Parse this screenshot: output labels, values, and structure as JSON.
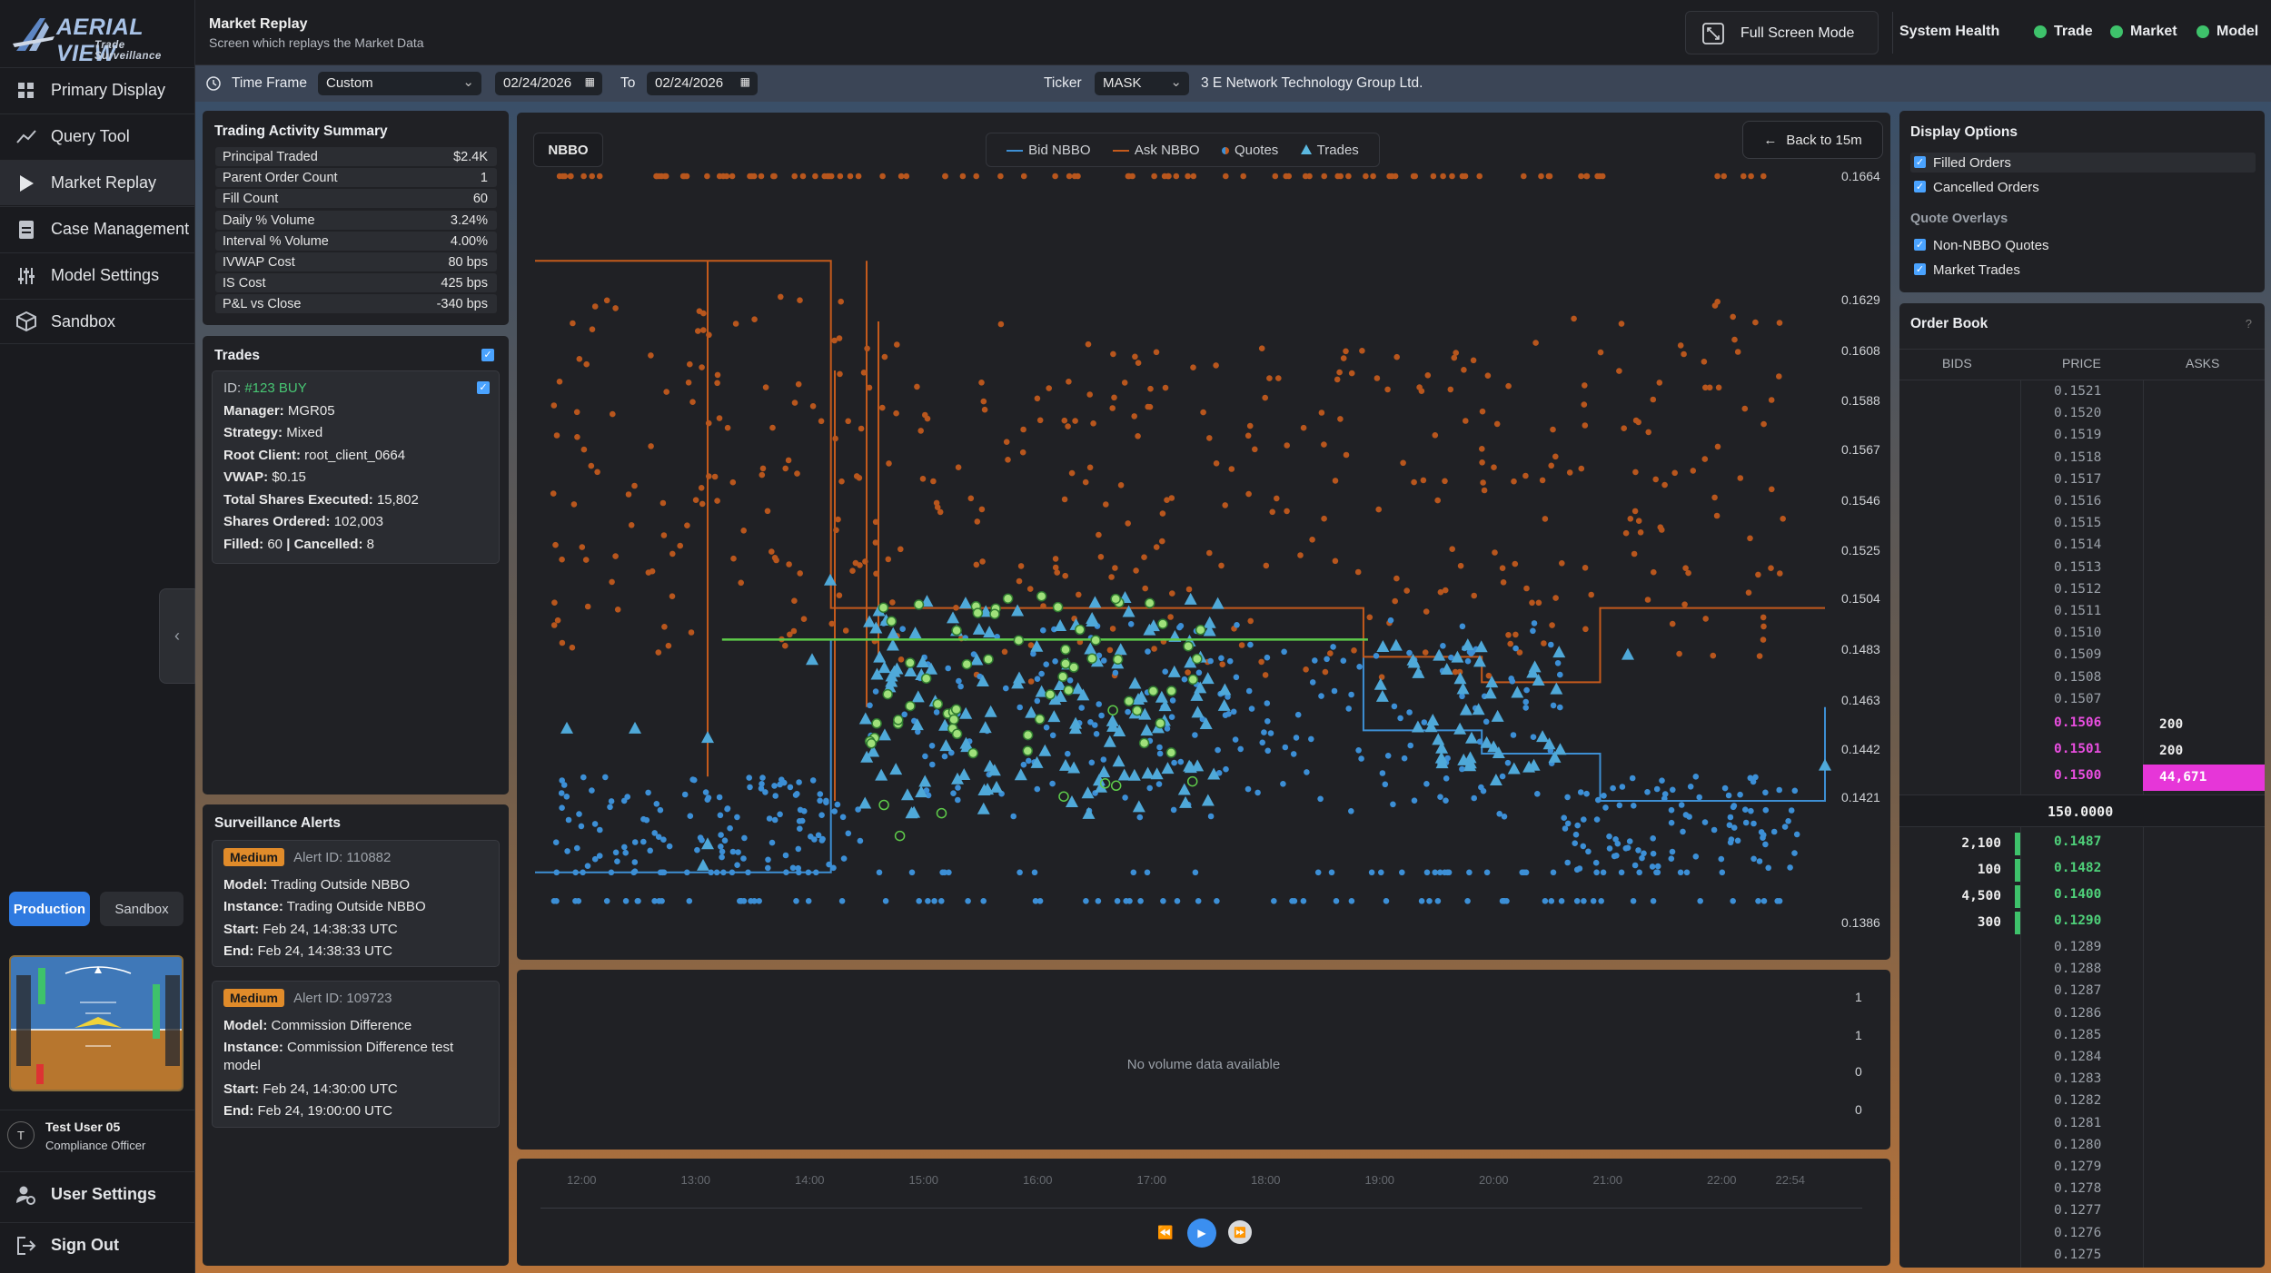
{
  "app": {
    "logo_line1": "AERIAL VIEW",
    "logo_line2": "Trade Surveillance",
    "page_title": "Market Replay",
    "page_subtitle": "Screen which replays the Market Data",
    "fullscreen_label": "Full Screen Mode",
    "system_health_label": "System Health",
    "health": [
      {
        "label": "Trade",
        "color": "#3ec26b"
      },
      {
        "label": "Market",
        "color": "#3ec26b"
      },
      {
        "label": "Model",
        "color": "#3ec26b"
      }
    ]
  },
  "sidebar": {
    "items": [
      {
        "label": "Primary Display",
        "icon": "grid-icon"
      },
      {
        "label": "Query Tool",
        "icon": "trend-icon"
      },
      {
        "label": "Market Replay",
        "icon": "play-icon",
        "active": true
      },
      {
        "label": "Case Management",
        "icon": "document-icon"
      },
      {
        "label": "Model Settings",
        "icon": "sliders-icon"
      },
      {
        "label": "Sandbox",
        "icon": "cube-icon"
      }
    ],
    "env_production": "Production",
    "env_sandbox": "Sandbox",
    "user_initial": "T",
    "user_name": "Test User 05",
    "user_role": "Compliance Officer",
    "user_settings": "User Settings",
    "sign_out": "Sign Out"
  },
  "filters": {
    "timeframe_label": "Time Frame",
    "timeframe_value": "Custom",
    "date_from": "02/24/2026",
    "to_label": "To",
    "date_to": "02/24/2026",
    "ticker_label": "Ticker",
    "ticker_value": "MASK",
    "company_name": "3 E Network Technology Group Ltd."
  },
  "summary": {
    "title": "Trading Activity Summary",
    "rows": [
      {
        "k": "Principal Traded",
        "v": "$2.4K"
      },
      {
        "k": "Parent Order Count",
        "v": "1"
      },
      {
        "k": "Fill Count",
        "v": "60"
      },
      {
        "k": "Daily % Volume",
        "v": "3.24%"
      },
      {
        "k": "Interval % Volume",
        "v": "4.00%"
      },
      {
        "k": "IVWAP Cost",
        "v": "80 bps"
      },
      {
        "k": "IS Cost",
        "v": "425 bps"
      },
      {
        "k": "P&L vs Close",
        "v": "-340 bps"
      }
    ]
  },
  "trades": {
    "title": "Trades",
    "id_label": "ID:",
    "id_value": "#123 BUY",
    "manager_label": "Manager:",
    "manager": "MGR05",
    "strategy_label": "Strategy:",
    "strategy": "Mixed",
    "root_label": "Root Client:",
    "root_client": "root_client_0664",
    "vwap_label": "VWAP:",
    "vwap": "$0.15",
    "tse_label": "Total Shares Executed:",
    "tse": "15,802",
    "so_label": "Shares Ordered:",
    "so": "102,003",
    "filled_label": "Filled:",
    "filled": "60",
    "cancelled_label": "Cancelled:",
    "cancelled": "8"
  },
  "alerts": {
    "title": "Surveillance Alerts",
    "items": [
      {
        "severity": "Medium",
        "alert_id_label": "Alert ID:",
        "alert_id": "110882",
        "model_label": "Model:",
        "model": "Trading Outside NBBO",
        "instance_label": "Instance:",
        "instance": "Trading Outside NBBO",
        "start_label": "Start:",
        "start": "Feb 24, 14:38:33 UTC",
        "end_label": "End:",
        "end": "Feb 24, 14:38:33 UTC"
      },
      {
        "severity": "Medium",
        "alert_id_label": "Alert ID:",
        "alert_id": "109723",
        "model_label": "Model:",
        "model": "Commission Difference",
        "instance_label": "Instance:",
        "instance_line1": "Commission Difference test",
        "instance_line2": "model",
        "start_label": "Start:",
        "start": "Feb 24, 14:30:00 UTC",
        "end_label": "End:",
        "end": "Feb 24, 19:00:00 UTC"
      }
    ]
  },
  "chart": {
    "nbbo_button": "NBBO",
    "back_button": "Back to 15m",
    "legend": [
      {
        "label": "Bid NBBO",
        "color": "#3d8fd4"
      },
      {
        "label": "Ask NBBO",
        "color": "#c45a1c"
      },
      {
        "label": "Quotes",
        "color": "#c45a1c"
      },
      {
        "label": "Trades",
        "color": "#5bb8e0"
      }
    ],
    "no_volume_text": "No volume data available",
    "volume_ticks": [
      "1",
      "1",
      "0",
      "0"
    ],
    "timeline_ticks": [
      "12:00",
      "13:00",
      "14:00",
      "15:00",
      "16:00",
      "17:00",
      "18:00",
      "19:00",
      "20:00",
      "21:00",
      "22:00",
      "22:54"
    ]
  },
  "chart_data": {
    "type": "scatter",
    "title": "",
    "xlabel": "",
    "ylabel": "",
    "y_ticks": [
      0.1664,
      0.1629,
      0.1608,
      0.1588,
      0.1567,
      0.1546,
      0.1525,
      0.1504,
      0.1483,
      0.1463,
      0.1442,
      0.1421,
      0.1386
    ],
    "x_ticks": [
      "12:00",
      "13:00",
      "14:00",
      "15:00",
      "16:00",
      "17:00",
      "18:00",
      "19:00",
      "20:00",
      "21:00",
      "22:00",
      "22:54"
    ],
    "series": [
      {
        "name": "Bid NBBO",
        "x": [
          "12:00",
          "14:05",
          "14:30",
          "14:30",
          "15:00",
          "19:00",
          "20:00",
          "21:00",
          "22:54"
        ],
        "values": [
          0.14,
          0.14,
          0.14,
          0.1487,
          0.1487,
          0.145,
          0.144,
          0.142,
          0.146
        ]
      },
      {
        "name": "Ask NBBO",
        "x": [
          "12:00",
          "14:30",
          "14:30",
          "15:00",
          "19:00",
          "20:00",
          "21:00",
          "22:54"
        ],
        "values": [
          0.164,
          0.164,
          0.15,
          0.15,
          0.148,
          0.147,
          0.15,
          0.15
        ]
      }
    ]
  },
  "display_options": {
    "title": "Display Options",
    "filled_orders": "Filled Orders",
    "cancelled_orders": "Cancelled Orders",
    "quote_overlays": "Quote Overlays",
    "non_nbbo": "Non-NBBO Quotes",
    "market_trades": "Market Trades"
  },
  "order_book": {
    "title": "Order Book",
    "help": "?",
    "col_bids": "BIDS",
    "col_price": "PRICE",
    "col_asks": "ASKS",
    "upper_prices": [
      "0.1521",
      "0.1520",
      "0.1519",
      "0.1518",
      "0.1517",
      "0.1516",
      "0.1515",
      "0.1514",
      "0.1513",
      "0.1512",
      "0.1511",
      "0.1510",
      "0.1509",
      "0.1508",
      "0.1507"
    ],
    "asks": [
      {
        "price": "0.1506",
        "size": "200"
      },
      {
        "price": "0.1501",
        "size": "200"
      },
      {
        "price": "0.1500",
        "size": "44,671"
      }
    ],
    "mid": "150.0000",
    "bids": [
      {
        "price": "0.1487",
        "size": "2,100"
      },
      {
        "price": "0.1482",
        "size": "100"
      },
      {
        "price": "0.1400",
        "size": "4,500"
      },
      {
        "price": "0.1290",
        "size": "300"
      }
    ],
    "lower_prices": [
      "0.1289",
      "0.1288",
      "0.1287",
      "0.1286",
      "0.1285",
      "0.1284",
      "0.1283",
      "0.1282",
      "0.1281",
      "0.1280",
      "0.1279",
      "0.1278",
      "0.1277",
      "0.1276",
      "0.1275"
    ]
  }
}
